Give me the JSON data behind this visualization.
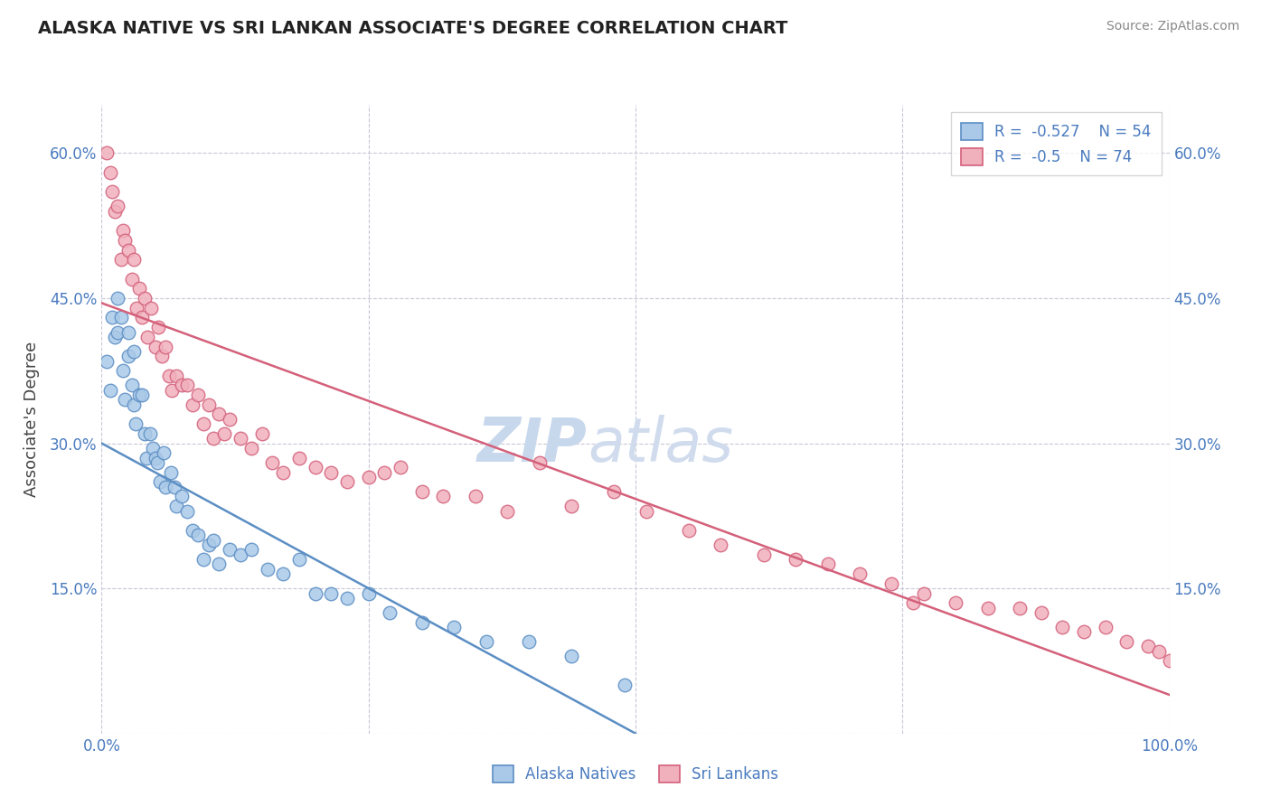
{
  "title": "ALASKA NATIVE VS SRI LANKAN ASSOCIATE'S DEGREE CORRELATION CHART",
  "source": "Source: ZipAtlas.com",
  "ylabel": "Associate's Degree",
  "xlim": [
    0.0,
    1.0
  ],
  "ylim": [
    0.0,
    0.65
  ],
  "x_ticks": [
    0.0,
    0.25,
    0.5,
    0.75,
    1.0
  ],
  "y_ticks": [
    0.0,
    0.15,
    0.3,
    0.45,
    0.6
  ],
  "alaska_R": -0.527,
  "alaska_N": 54,
  "srilankan_R": -0.5,
  "srilankan_N": 74,
  "alaska_color": "#5b8ec4",
  "alaska_fill": "#aac9e8",
  "srilankan_color": "#d4607a",
  "srilankan_fill": "#f0b0bc",
  "grid_color": "#c8c8d8",
  "alaska_line_x0": 0.0,
  "alaska_line_y0": 0.3,
  "alaska_line_x1": 0.5,
  "alaska_line_y1": 0.0,
  "sri_line_x0": 0.0,
  "sri_line_y0": 0.445,
  "sri_line_x1": 1.0,
  "sri_line_y1": 0.04,
  "alaska_points_x": [
    0.005,
    0.008,
    0.01,
    0.012,
    0.015,
    0.015,
    0.018,
    0.02,
    0.022,
    0.025,
    0.025,
    0.028,
    0.03,
    0.03,
    0.032,
    0.035,
    0.038,
    0.04,
    0.042,
    0.045,
    0.048,
    0.05,
    0.052,
    0.055,
    0.058,
    0.06,
    0.065,
    0.068,
    0.07,
    0.075,
    0.08,
    0.085,
    0.09,
    0.095,
    0.1,
    0.105,
    0.11,
    0.12,
    0.13,
    0.14,
    0.155,
    0.17,
    0.185,
    0.2,
    0.215,
    0.23,
    0.25,
    0.27,
    0.3,
    0.33,
    0.36,
    0.4,
    0.44,
    0.49
  ],
  "alaska_points_y": [
    0.385,
    0.355,
    0.43,
    0.41,
    0.45,
    0.415,
    0.43,
    0.375,
    0.345,
    0.415,
    0.39,
    0.36,
    0.395,
    0.34,
    0.32,
    0.35,
    0.35,
    0.31,
    0.285,
    0.31,
    0.295,
    0.285,
    0.28,
    0.26,
    0.29,
    0.255,
    0.27,
    0.255,
    0.235,
    0.245,
    0.23,
    0.21,
    0.205,
    0.18,
    0.195,
    0.2,
    0.175,
    0.19,
    0.185,
    0.19,
    0.17,
    0.165,
    0.18,
    0.145,
    0.145,
    0.14,
    0.145,
    0.125,
    0.115,
    0.11,
    0.095,
    0.095,
    0.08,
    0.05
  ],
  "sri_points_x": [
    0.005,
    0.008,
    0.01,
    0.012,
    0.015,
    0.018,
    0.02,
    0.022,
    0.025,
    0.028,
    0.03,
    0.033,
    0.035,
    0.038,
    0.04,
    0.043,
    0.046,
    0.05,
    0.053,
    0.056,
    0.06,
    0.063,
    0.066,
    0.07,
    0.075,
    0.08,
    0.085,
    0.09,
    0.095,
    0.1,
    0.105,
    0.11,
    0.115,
    0.12,
    0.13,
    0.14,
    0.15,
    0.16,
    0.17,
    0.185,
    0.2,
    0.215,
    0.23,
    0.25,
    0.265,
    0.28,
    0.3,
    0.32,
    0.35,
    0.38,
    0.41,
    0.44,
    0.48,
    0.51,
    0.55,
    0.58,
    0.62,
    0.65,
    0.68,
    0.71,
    0.74,
    0.77,
    0.8,
    0.83,
    0.86,
    0.88,
    0.9,
    0.92,
    0.94,
    0.96,
    0.98,
    0.99,
    1.0,
    0.76
  ],
  "sri_points_y": [
    0.6,
    0.58,
    0.56,
    0.54,
    0.545,
    0.49,
    0.52,
    0.51,
    0.5,
    0.47,
    0.49,
    0.44,
    0.46,
    0.43,
    0.45,
    0.41,
    0.44,
    0.4,
    0.42,
    0.39,
    0.4,
    0.37,
    0.355,
    0.37,
    0.36,
    0.36,
    0.34,
    0.35,
    0.32,
    0.34,
    0.305,
    0.33,
    0.31,
    0.325,
    0.305,
    0.295,
    0.31,
    0.28,
    0.27,
    0.285,
    0.275,
    0.27,
    0.26,
    0.265,
    0.27,
    0.275,
    0.25,
    0.245,
    0.245,
    0.23,
    0.28,
    0.235,
    0.25,
    0.23,
    0.21,
    0.195,
    0.185,
    0.18,
    0.175,
    0.165,
    0.155,
    0.145,
    0.135,
    0.13,
    0.13,
    0.125,
    0.11,
    0.105,
    0.11,
    0.095,
    0.09,
    0.085,
    0.075,
    0.135
  ]
}
